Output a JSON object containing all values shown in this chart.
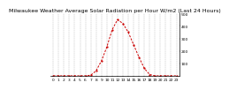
{
  "title": "Milwaukee Weather Average Solar Radiation per Hour W/m2 (Last 24 Hours)",
  "hours": [
    0,
    1,
    2,
    3,
    4,
    5,
    6,
    7,
    8,
    9,
    10,
    11,
    12,
    13,
    14,
    15,
    16,
    17,
    18,
    19,
    20,
    21,
    22,
    23
  ],
  "values": [
    0,
    0,
    0,
    0,
    0,
    0,
    0,
    5,
    40,
    120,
    230,
    370,
    450,
    420,
    350,
    250,
    150,
    60,
    10,
    0,
    0,
    0,
    0,
    0
  ],
  "line_color": "#cc0000",
  "bg_color": "#ffffff",
  "grid_color": "#999999",
  "ylim": [
    0,
    500
  ],
  "yticks": [
    100,
    200,
    300,
    400,
    500
  ],
  "title_fontsize": 4.5,
  "tick_fontsize": 3.2
}
